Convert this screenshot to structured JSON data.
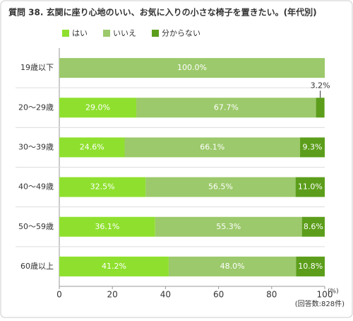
{
  "chart_data": {
    "type": "stacked-bar-horizontal",
    "title": "質問 38. 玄関に座り心地のいい、お気に入りの小さな椅子を置きたい。(年代別)",
    "categories": [
      "19歳以下",
      "20〜29歳",
      "30〜39歳",
      "40〜49歳",
      "50〜59歳",
      "60歳以上"
    ],
    "series": [
      {
        "name": "はい",
        "color": "#8fe02e",
        "values": [
          0,
          29.0,
          24.6,
          32.5,
          36.1,
          41.2
        ],
        "value_labels": [
          null,
          "29.0%",
          "24.6%",
          "32.5%",
          "36.1%",
          "41.2%"
        ]
      },
      {
        "name": "いいえ",
        "color": "#9cc96b",
        "values": [
          100.0,
          67.7,
          66.1,
          56.5,
          55.3,
          48.0
        ],
        "value_labels": [
          "100.0%",
          "67.7%",
          "66.1%",
          "56.5%",
          "55.3%",
          "48.0%"
        ]
      },
      {
        "name": "分からない",
        "color": "#5c9e1b",
        "values": [
          0,
          3.2,
          9.3,
          11.0,
          8.6,
          10.8
        ],
        "value_labels": [
          null,
          "3.2%",
          "9.3%",
          "11.0%",
          "8.6%",
          "10.8%"
        ]
      }
    ],
    "xlim": [
      0,
      100
    ],
    "xticks": [
      0,
      20,
      40,
      60,
      80,
      100
    ],
    "x_unit": "(%)",
    "note": "(回答数:828件)"
  }
}
